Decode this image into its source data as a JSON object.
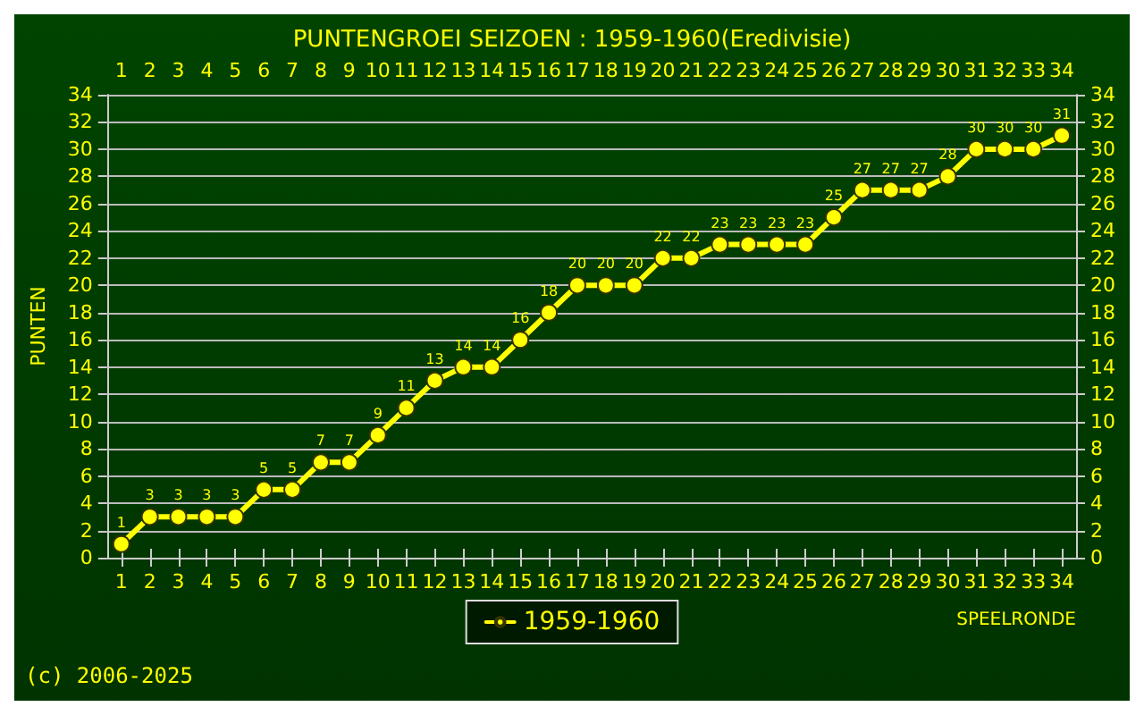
{
  "chart_data": {
    "type": "line",
    "title": "PUNTENGROEI SEIZOEN : 1959-1960(Eredivisie)",
    "xlabel": "SPEELRONDE",
    "ylabel": "PUNTEN",
    "x": [
      1,
      2,
      3,
      4,
      5,
      6,
      7,
      8,
      9,
      10,
      11,
      12,
      13,
      14,
      15,
      16,
      17,
      18,
      19,
      20,
      21,
      22,
      23,
      24,
      25,
      26,
      27,
      28,
      29,
      30,
      31,
      32,
      33,
      34
    ],
    "series": [
      {
        "name": "1959-1960",
        "color": "#ffff00",
        "values": [
          1,
          3,
          3,
          3,
          3,
          5,
          5,
          7,
          7,
          9,
          11,
          13,
          14,
          14,
          16,
          18,
          20,
          20,
          20,
          22,
          22,
          23,
          23,
          23,
          23,
          25,
          27,
          27,
          27,
          28,
          30,
          30,
          30,
          31
        ]
      }
    ],
    "xlim": [
      0.5,
      34.5
    ],
    "xticks": [
      1,
      2,
      3,
      4,
      5,
      6,
      7,
      8,
      9,
      10,
      11,
      12,
      13,
      14,
      15,
      16,
      17,
      18,
      19,
      20,
      21,
      22,
      23,
      24,
      25,
      26,
      27,
      28,
      29,
      30,
      31,
      32,
      33,
      34
    ],
    "x2lim": [
      0.5,
      34.5
    ],
    "x2ticks": [
      1,
      2,
      3,
      4,
      5,
      6,
      7,
      8,
      9,
      10,
      11,
      12,
      13,
      14,
      15,
      16,
      17,
      18,
      19,
      20,
      21,
      22,
      23,
      24,
      25,
      26,
      27,
      28,
      29,
      30,
      31,
      32,
      33,
      34
    ],
    "ylim": [
      0,
      34
    ],
    "yticks": [
      0,
      2,
      4,
      6,
      8,
      10,
      12,
      14,
      16,
      18,
      20,
      22,
      24,
      26,
      28,
      30,
      32,
      34
    ],
    "y2lim": [
      0,
      34
    ],
    "y2ticks": [
      0,
      2,
      4,
      6,
      8,
      10,
      12,
      14,
      16,
      18,
      20,
      22,
      24,
      26,
      28,
      30,
      32,
      34
    ],
    "grid": "y",
    "legend": "bottom",
    "marker": "circle",
    "line_style": "solid",
    "data_labels": true,
    "annotations": [
      "(c) 2006-2025"
    ]
  }
}
